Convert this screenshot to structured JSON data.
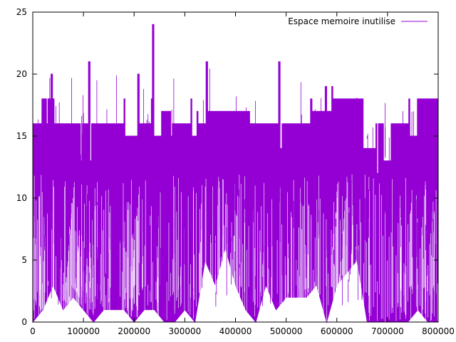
{
  "chart_data": {
    "type": "line",
    "title": "",
    "xlabel": "",
    "ylabel": "",
    "xlim": [
      0,
      800000
    ],
    "ylim": [
      0,
      25
    ],
    "x_ticks": [
      0,
      100000,
      200000,
      300000,
      400000,
      500000,
      600000,
      700000,
      800000
    ],
    "y_ticks": [
      0,
      5,
      10,
      15,
      20,
      25
    ],
    "x_tick_labels": [
      "0",
      "100000",
      "200000",
      "300000",
      "400000",
      "500000",
      "600000",
      "700000",
      "800000"
    ],
    "y_tick_labels": [
      "0",
      "5",
      "10",
      "15",
      "20",
      "25"
    ],
    "grid": false,
    "legend_position": "top-right",
    "series": [
      {
        "name": "Espace memoire inutilise",
        "color": "#9400d3",
        "upper_envelope": [
          [
            0,
            16
          ],
          [
            16000,
            16
          ],
          [
            18000,
            18
          ],
          [
            24000,
            18
          ],
          [
            27000,
            16
          ],
          [
            30000,
            18
          ],
          [
            36000,
            20
          ],
          [
            39000,
            18
          ],
          [
            42000,
            16
          ],
          [
            90000,
            16
          ],
          [
            94000,
            13
          ],
          [
            98000,
            16
          ],
          [
            108000,
            16
          ],
          [
            110000,
            21
          ],
          [
            113000,
            13
          ],
          [
            116000,
            16
          ],
          [
            178000,
            16
          ],
          [
            180000,
            18
          ],
          [
            182000,
            15
          ],
          [
            205000,
            15
          ],
          [
            207000,
            20
          ],
          [
            210000,
            16
          ],
          [
            232000,
            16
          ],
          [
            234000,
            18
          ],
          [
            236000,
            24
          ],
          [
            239000,
            15
          ],
          [
            252000,
            15
          ],
          [
            254000,
            17
          ],
          [
            270000,
            17
          ],
          [
            272000,
            15
          ],
          [
            276000,
            16
          ],
          [
            310000,
            16
          ],
          [
            312000,
            18
          ],
          [
            314000,
            15
          ],
          [
            322000,
            15
          ],
          [
            324000,
            17
          ],
          [
            326000,
            16
          ],
          [
            340000,
            16
          ],
          [
            342000,
            21
          ],
          [
            345000,
            17
          ],
          [
            425000,
            17
          ],
          [
            428000,
            16
          ],
          [
            470000,
            16
          ],
          [
            483000,
            16
          ],
          [
            485000,
            21
          ],
          [
            488000,
            14
          ],
          [
            492000,
            16
          ],
          [
            545000,
            16
          ],
          [
            548000,
            18
          ],
          [
            551000,
            17
          ],
          [
            575000,
            17
          ],
          [
            577000,
            19
          ],
          [
            580000,
            17
          ],
          [
            588000,
            17
          ],
          [
            590000,
            19
          ],
          [
            592000,
            18
          ],
          [
            650000,
            18
          ],
          [
            652000,
            14
          ],
          [
            675000,
            14
          ],
          [
            677000,
            16
          ],
          [
            679000,
            12
          ],
          [
            682000,
            16
          ],
          [
            690000,
            16
          ],
          [
            692000,
            13
          ],
          [
            705000,
            13
          ],
          [
            707000,
            16
          ],
          [
            740000,
            16
          ],
          [
            742000,
            18
          ],
          [
            744000,
            15
          ],
          [
            757000,
            15
          ],
          [
            759000,
            18
          ],
          [
            800000,
            18
          ]
        ],
        "lower_envelope": [
          [
            0,
            0
          ],
          [
            20000,
            1
          ],
          [
            40000,
            3
          ],
          [
            60000,
            1
          ],
          [
            80000,
            2
          ],
          [
            100000,
            1
          ],
          [
            120000,
            0
          ],
          [
            140000,
            1
          ],
          [
            160000,
            1
          ],
          [
            180000,
            1
          ],
          [
            200000,
            0
          ],
          [
            220000,
            1
          ],
          [
            240000,
            1
          ],
          [
            260000,
            0
          ],
          [
            280000,
            0
          ],
          [
            300000,
            1
          ],
          [
            320000,
            0
          ],
          [
            340000,
            5
          ],
          [
            360000,
            3
          ],
          [
            380000,
            6
          ],
          [
            400000,
            3
          ],
          [
            420000,
            1
          ],
          [
            440000,
            0
          ],
          [
            460000,
            3
          ],
          [
            480000,
            1
          ],
          [
            500000,
            2
          ],
          [
            520000,
            2
          ],
          [
            540000,
            2
          ],
          [
            560000,
            3
          ],
          [
            580000,
            0
          ],
          [
            600000,
            3
          ],
          [
            620000,
            4
          ],
          [
            640000,
            5
          ],
          [
            660000,
            0
          ],
          [
            680000,
            0
          ],
          [
            700000,
            0
          ],
          [
            720000,
            0
          ],
          [
            740000,
            0
          ],
          [
            760000,
            1
          ],
          [
            780000,
            0
          ],
          [
            800000,
            0
          ]
        ]
      }
    ]
  }
}
